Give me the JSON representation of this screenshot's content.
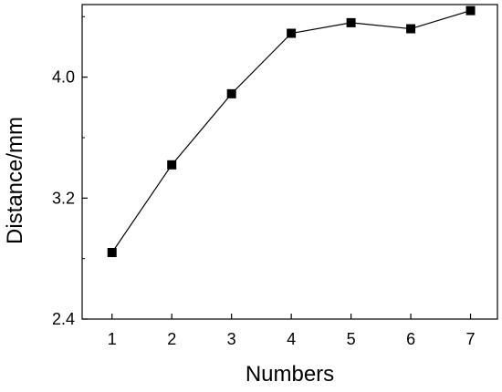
{
  "chart_data": {
    "type": "line",
    "title": "",
    "xlabel": "Numbers",
    "ylabel": "Distance/mm",
    "x": [
      1,
      2,
      3,
      4,
      5,
      6,
      7
    ],
    "xticks": [
      "1",
      "2",
      "3",
      "4",
      "5",
      "6",
      "7"
    ],
    "yticks": [
      "2.4",
      "3.2",
      "4.0"
    ],
    "xlim": [
      0.5,
      7.45
    ],
    "ylim": [
      2.4,
      4.48
    ],
    "series": [
      {
        "values": [
          2.84,
          3.42,
          3.89,
          4.29,
          4.36,
          4.32,
          4.44
        ]
      }
    ],
    "grid": false,
    "legend": "none",
    "colors": {
      "line": "#000000",
      "marker": "#000000",
      "axis": "#000000"
    }
  }
}
